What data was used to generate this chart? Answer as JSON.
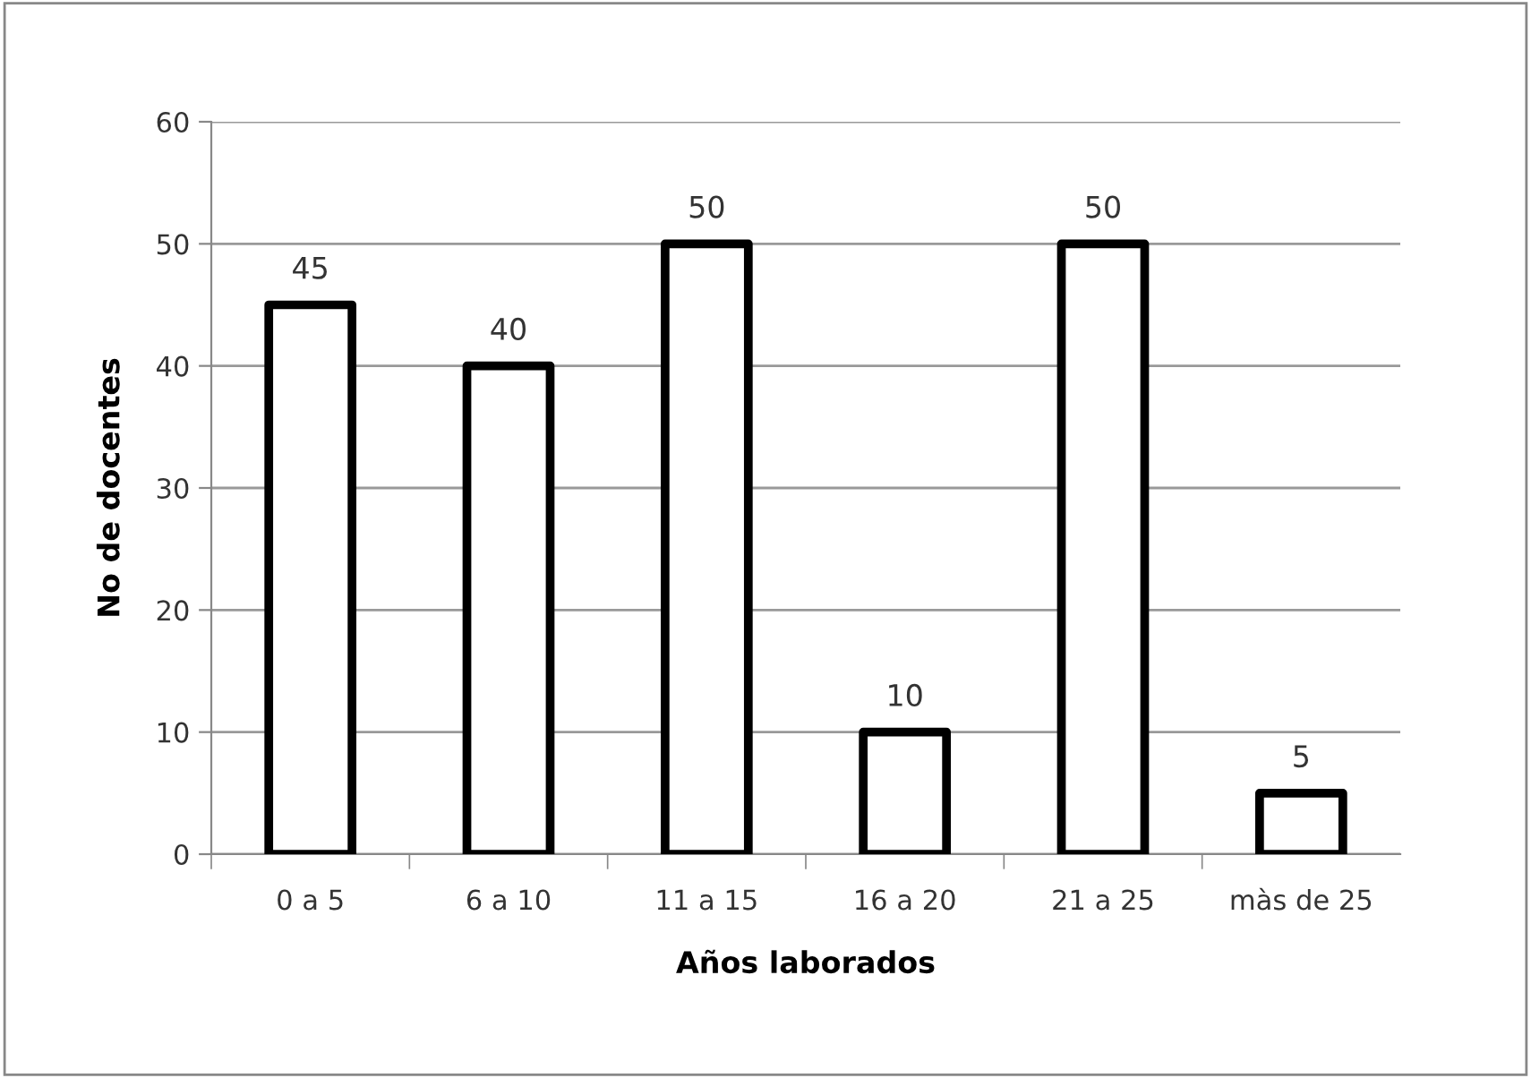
{
  "chart_data": {
    "type": "bar",
    "xlabel": "Años laborados",
    "ylabel": "No de docentes",
    "categories": [
      "0 a 5",
      "6 a 10",
      "11 a 15",
      "16 a 20",
      "21 a 25",
      "màs de 25"
    ],
    "values": [
      45,
      40,
      50,
      10,
      50,
      5
    ],
    "color": "#ffffff",
    "ylim": [
      0,
      60
    ],
    "yticks": [
      0,
      10,
      20,
      30,
      40,
      50,
      60
    ],
    "grid": "y",
    "data_labels": true,
    "legend": false
  }
}
